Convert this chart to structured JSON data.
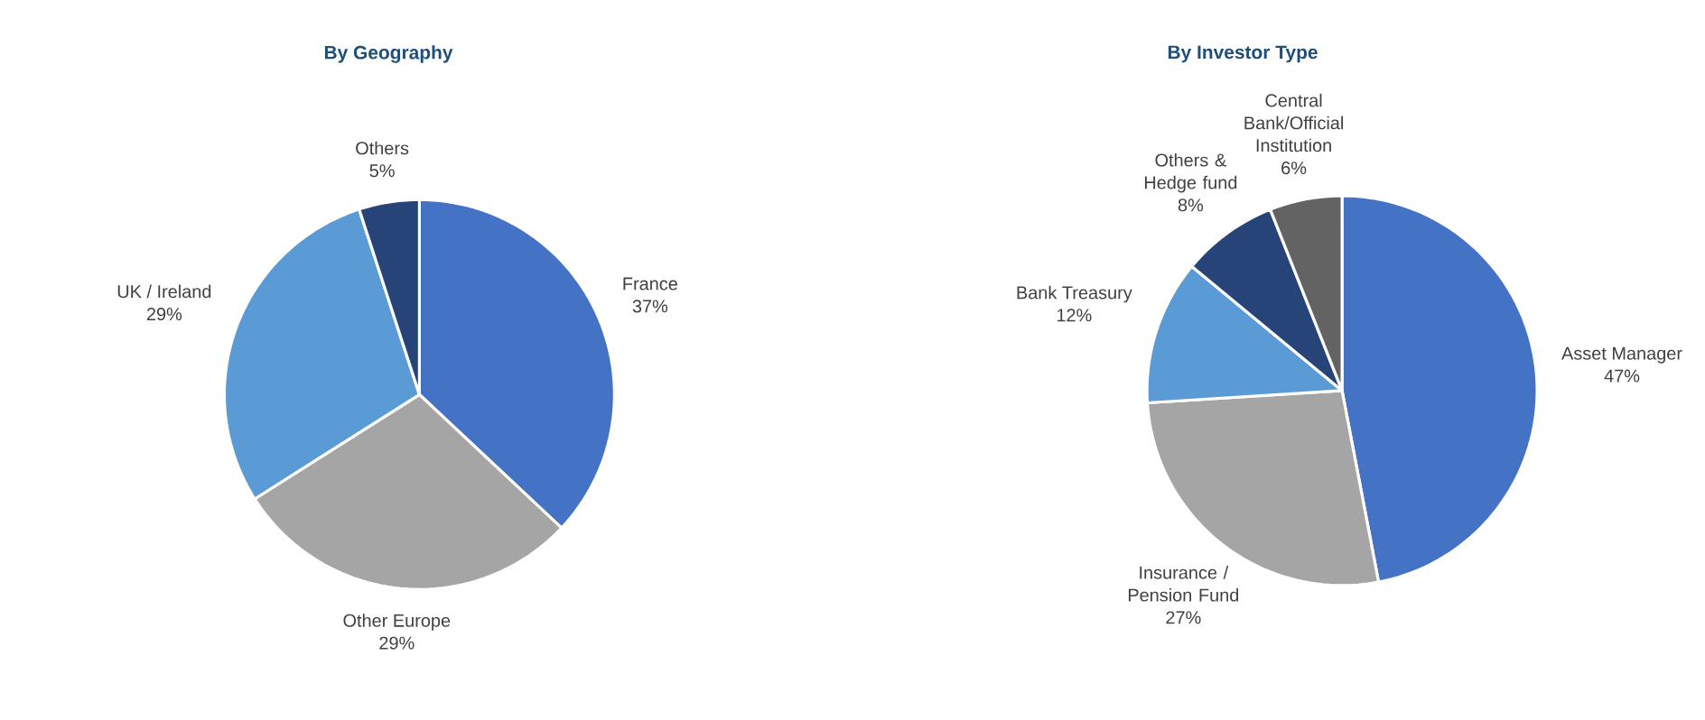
{
  "chart_data": [
    {
      "type": "pie",
      "title": "By Geography",
      "categories": [
        "France",
        "Other Europe",
        "UK / Ireland",
        "Others"
      ],
      "values": [
        37,
        29,
        29,
        5
      ],
      "value_labels": [
        "37%",
        "29%",
        "29%",
        "5%"
      ],
      "colors": [
        "#4472c4",
        "#a5a5a5",
        "#5b9bd5",
        "#264478"
      ]
    },
    {
      "type": "pie",
      "title": "By Investor Type",
      "categories": [
        "Asset Manager",
        "Insurance / Pension Fund",
        "Bank Treasury",
        "Others & Hedge fund",
        "Central Bank/Official Institution"
      ],
      "values": [
        47,
        27,
        12,
        8,
        6
      ],
      "value_labels": [
        "47%",
        "27%",
        "12%",
        "8%",
        "6%"
      ],
      "colors": [
        "#4472c4",
        "#a5a5a5",
        "#5b9bd5",
        "#264478",
        "#636363"
      ]
    }
  ]
}
